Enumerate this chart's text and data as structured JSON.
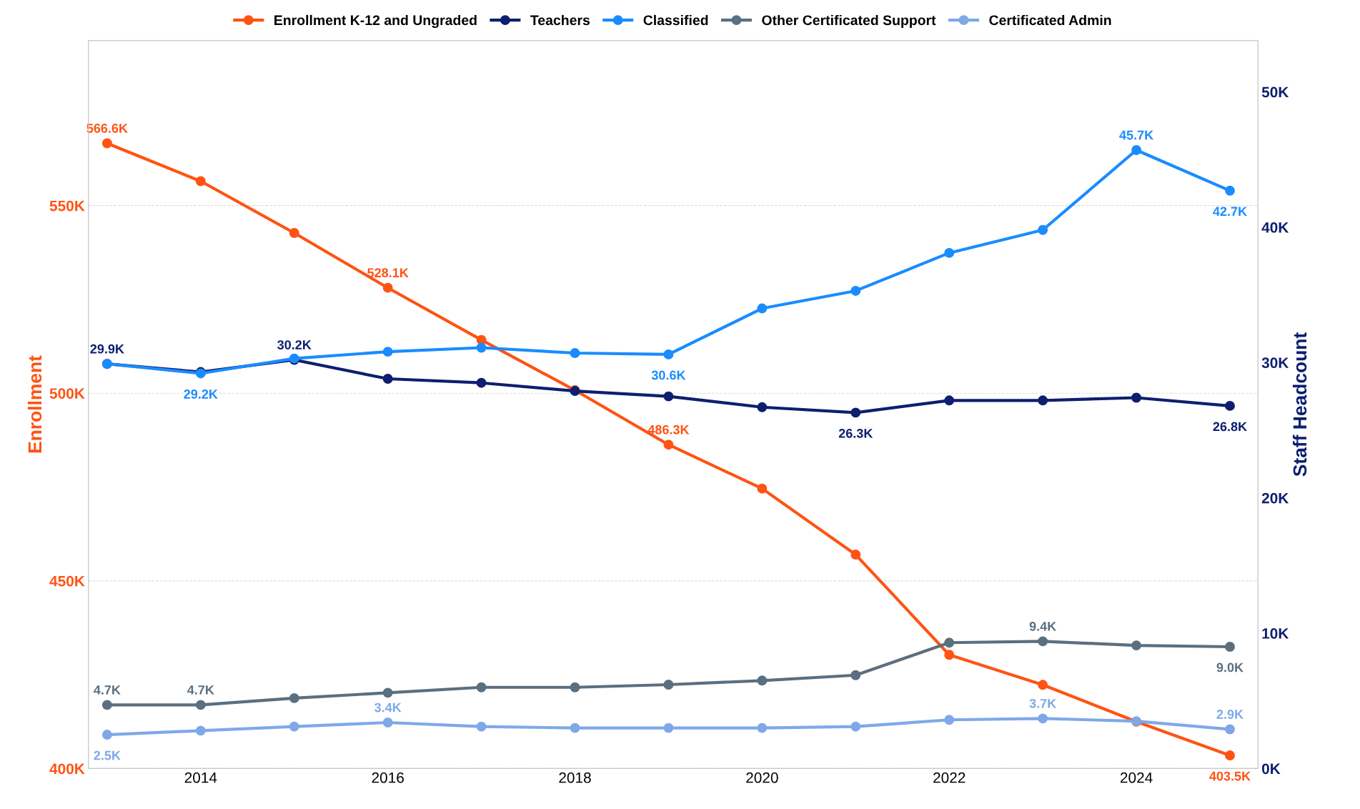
{
  "chart_data": {
    "type": "line",
    "ylabel": "Enrollment",
    "y2label": "Staff Headcount",
    "x": [
      2013,
      2014,
      2015,
      2016,
      2017,
      2018,
      2019,
      2020,
      2021,
      2022,
      2023,
      2024,
      2025
    ],
    "xlim": [
      2012.8,
      2025.3
    ],
    "xticks": [
      2014,
      2016,
      2018,
      2020,
      2022,
      2024
    ],
    "ylim": [
      400000,
      594000
    ],
    "yticks": [
      {
        "value": 400000,
        "label": "400K"
      },
      {
        "value": 450000,
        "label": "450K"
      },
      {
        "value": 500000,
        "label": "500K"
      },
      {
        "value": 550000,
        "label": "550K"
      }
    ],
    "y2lim": [
      0,
      53800
    ],
    "y2ticks": [
      {
        "value": 0,
        "label": "0K"
      },
      {
        "value": 10000,
        "label": "10K"
      },
      {
        "value": 20000,
        "label": "20K"
      },
      {
        "value": 30000,
        "label": "30K"
      },
      {
        "value": 40000,
        "label": "40K"
      },
      {
        "value": 50000,
        "label": "50K"
      }
    ],
    "grid": "y",
    "legend": "top",
    "marker": "circle",
    "line_style": "solid",
    "series": [
      {
        "name": "Enrollment K-12 and Ungraded",
        "color": "#ff5313",
        "values": [
          566600,
          556500,
          542700,
          528100,
          514200,
          500800,
          486300,
          474600,
          457000,
          430300,
          422300,
          412500,
          403500
        ],
        "value_labels": [
          "566.6K",
          null,
          null,
          "528.1K",
          null,
          null,
          "486.3K",
          null,
          null,
          null,
          null,
          null,
          "403.5K"
        ]
      },
      {
        "name": "Teachers",
        "color": "#0d1f6e",
        "axis": "y2",
        "values": [
          29900,
          29300,
          30200,
          28800,
          28500,
          27900,
          27500,
          26700,
          26300,
          27200,
          27200,
          27400,
          26800
        ],
        "value_labels": [
          "29.9K",
          null,
          "30.2K",
          null,
          null,
          null,
          null,
          null,
          "26.3K",
          null,
          null,
          null,
          "26.8K"
        ]
      },
      {
        "name": "Classified",
        "color": "#1a8cff",
        "axis": "y2",
        "values": [
          29900,
          29200,
          30300,
          30800,
          31100,
          30700,
          30600,
          34000,
          35300,
          38100,
          39800,
          45700,
          42700
        ],
        "value_labels": [
          null,
          "29.2K",
          null,
          null,
          null,
          null,
          "30.6K",
          null,
          null,
          null,
          null,
          "45.7K",
          "42.7K"
        ]
      },
      {
        "name": "Other Certificated Support",
        "color": "#5a6f80",
        "axis": "y2",
        "values": [
          4700,
          4700,
          5200,
          5600,
          6000,
          6000,
          6200,
          6500,
          6900,
          9300,
          9400,
          9100,
          9000
        ],
        "value_labels": [
          "4.7K",
          "4.7K",
          null,
          null,
          null,
          null,
          null,
          null,
          null,
          null,
          "9.4K",
          null,
          "9.0K"
        ]
      },
      {
        "name": "Certificated Admin",
        "color": "#7fa8e8",
        "axis": "y2",
        "values": [
          2500,
          2800,
          3100,
          3400,
          3100,
          3000,
          3000,
          3000,
          3100,
          3600,
          3700,
          3500,
          2900
        ],
        "value_labels": [
          "2.5K",
          null,
          null,
          "3.4K",
          null,
          null,
          null,
          null,
          null,
          null,
          "3.7K",
          null,
          "2.9K"
        ]
      }
    ]
  }
}
